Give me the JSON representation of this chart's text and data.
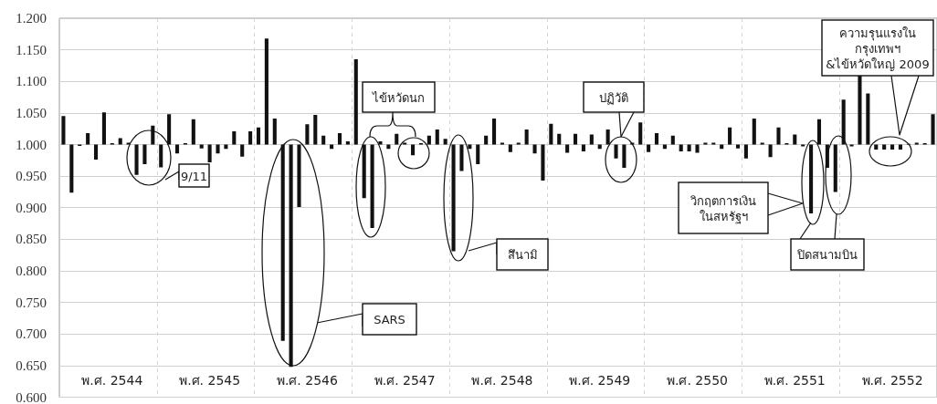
{
  "chart_data": {
    "type": "bar",
    "categories": [
      null,
      null,
      null,
      null,
      null,
      null,
      "พ.ศ. 2544",
      null,
      null,
      null,
      null,
      null,
      null,
      null,
      null,
      null,
      null,
      null,
      "พ.ศ. 2545",
      null,
      null,
      null,
      null,
      null,
      null,
      null,
      null,
      null,
      null,
      null,
      "พ.ศ. 2546",
      null,
      null,
      null,
      null,
      null,
      null,
      null,
      null,
      null,
      null,
      null,
      "พ.ศ. 2547",
      null,
      null,
      null,
      null,
      null,
      null,
      null,
      null,
      null,
      null,
      null,
      "พ.ศ. 2548",
      null,
      null,
      null,
      null,
      null,
      null,
      null,
      null,
      null,
      null,
      null,
      "พ.ศ. 2549",
      null,
      null,
      null,
      null,
      null,
      null,
      null,
      null,
      null,
      null,
      null,
      "พ.ศ. 2550",
      null,
      null,
      null,
      null,
      null,
      null,
      null,
      null,
      null,
      null,
      null,
      "พ.ศ. 2551",
      null,
      null,
      null,
      null,
      null,
      null,
      null,
      null,
      null,
      null,
      null,
      "พ.ศ. 2552",
      null,
      null,
      null,
      null,
      null
    ],
    "values": [
      0.045,
      -0.076,
      -0.002,
      0.018,
      -0.024,
      0.051,
      0.002,
      0.01,
      0.003,
      -0.048,
      -0.031,
      0.03,
      -0.036,
      0.048,
      -0.014,
      0.002,
      0.04,
      -0.006,
      -0.028,
      -0.014,
      -0.007,
      0.021,
      -0.019,
      0.021,
      0.027,
      0.168,
      0.041,
      -0.311,
      -0.352,
      -0.099,
      0.032,
      0.047,
      0.014,
      -0.007,
      0.018,
      0.005,
      0.135,
      -0.085,
      -0.132,
      0.005,
      -0.007,
      0.017,
      0.003,
      -0.017,
      0.002,
      0.014,
      0.024,
      0.009,
      -0.169,
      -0.042,
      -0.007,
      -0.031,
      0.014,
      0.041,
      0.003,
      -0.012,
      0.003,
      0.024,
      -0.014,
      -0.057,
      0.033,
      0.017,
      -0.013,
      0.017,
      -0.011,
      0.016,
      -0.007,
      0.024,
      -0.022,
      -0.037,
      0.003,
      0.035,
      -0.012,
      0.018,
      -0.007,
      0.014,
      -0.011,
      -0.011,
      -0.013,
      0.003,
      0.003,
      -0.007,
      0.027,
      -0.006,
      -0.022,
      0.041,
      0.003,
      -0.02,
      0.027,
      0.002,
      0.016,
      -0.003,
      -0.109,
      0.04,
      -0.037,
      -0.075,
      0.071,
      -0.003,
      0.11,
      0.081,
      -0.008,
      -0.008,
      -0.008,
      -0.008,
      0.001,
      0.003,
      0.002,
      0.048
    ],
    "base": [
      1,
      1,
      1,
      1,
      1,
      1,
      1,
      1,
      1,
      1,
      1,
      1,
      1,
      1,
      1,
      1,
      1,
      1,
      1,
      1,
      1,
      1,
      1,
      1,
      1,
      1,
      1,
      1,
      1,
      1,
      1,
      1,
      1,
      1,
      1,
      1,
      1,
      1,
      1,
      1,
      1,
      1,
      1,
      1,
      1,
      1,
      1,
      1,
      1,
      1,
      1,
      1,
      1,
      1,
      1,
      1,
      1,
      1,
      1,
      1,
      1,
      1,
      1,
      1,
      1,
      1,
      1,
      1,
      1,
      1,
      1,
      1,
      1,
      1,
      1,
      1,
      1,
      1,
      1,
      1,
      1,
      1,
      1,
      1,
      1,
      1,
      1,
      1,
      1,
      1,
      1,
      1,
      1,
      1,
      1,
      1,
      1,
      1,
      1,
      1,
      1,
      1,
      1,
      1,
      1,
      1,
      1,
      1
    ],
    "color": "#111111",
    "ylim": [
      0.6,
      1.2
    ],
    "yticks": [
      {
        "value": 0.6,
        "label": "0.600"
      },
      {
        "value": 0.65,
        "label": "0.650"
      },
      {
        "value": 0.7,
        "label": "0.700"
      },
      {
        "value": 0.75,
        "label": "0.750"
      },
      {
        "value": 0.8,
        "label": "0.800"
      },
      {
        "value": 0.85,
        "label": "0.850"
      },
      {
        "value": 0.9,
        "label": "0.900"
      },
      {
        "value": 0.95,
        "label": "0.950"
      },
      {
        "value": 1.0,
        "label": "1.000"
      },
      {
        "value": 1.05,
        "label": "1.050"
      },
      {
        "value": 1.1,
        "label": "1.100"
      },
      {
        "value": 1.15,
        "label": "1.150"
      },
      {
        "value": 1.2,
        "label": "1.200"
      }
    ],
    "grid": true,
    "annotations": [
      "9/11",
      "SARS",
      "ไข้หวัดนก",
      "สึนามิ",
      "ปฏิวัติ",
      "วิกฤตการเงิน\nในสหรัฐฯ",
      "ปิดสนามบิน",
      "ความรุนแรงใน\nกรุงเทพฯ\n&ไข้หวัดใหญ่ 2009"
    ]
  }
}
